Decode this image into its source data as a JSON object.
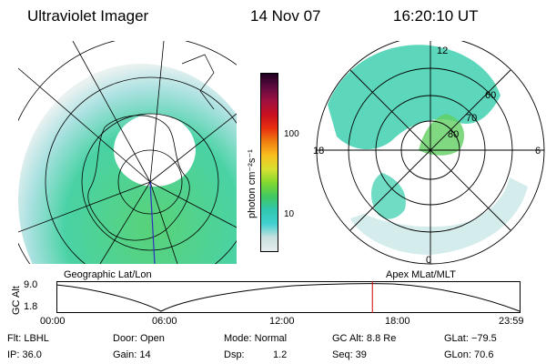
{
  "header": {
    "instrument": "Ultraviolet Imager",
    "date": "14 Nov 07",
    "time": "16:20:10 UT"
  },
  "left_panel": {
    "label": "Geographic Lat/Lon"
  },
  "right_panel": {
    "label": "Apex MLat/MLT",
    "lat_labels": [
      "60",
      "70",
      "80"
    ],
    "mlt_labels": [
      "12",
      "18",
      "6",
      "0"
    ]
  },
  "colorbar": {
    "unit_label": "photon cm⁻²s⁻¹",
    "ticks": [
      "100",
      "10"
    ],
    "colors": [
      "#e8ecec",
      "#c8e0e0",
      "#40d0d0",
      "#30c8b0",
      "#40c860",
      "#80d830",
      "#d8e030",
      "#f8c020",
      "#f08010",
      "#e83010",
      "#c81020",
      "#a01040",
      "#600a40",
      "#200020"
    ]
  },
  "altitude_plot": {
    "ylabel": "GC Alt",
    "y_ticks": [
      "9.0",
      "1.8"
    ],
    "x_ticks": [
      "00:00",
      "06:00",
      "12:00",
      "18:00",
      "23:59"
    ],
    "marker_color": "#cc0000",
    "marker_time_hours": 16.34
  },
  "info": {
    "filter": "Flt: LBHL",
    "door": "Door: Open",
    "mode": "Mode: Normal",
    "gc_alt": "GC Alt: 8.8 Re",
    "glat": "GLat: −79.5",
    "ip": "IP: 36.0",
    "gain": "Gain: 14",
    "dsp_label": "Dsp:",
    "dsp_value": "1.2",
    "seq": "Seq: 39",
    "glon": "GLon:  70.6"
  }
}
